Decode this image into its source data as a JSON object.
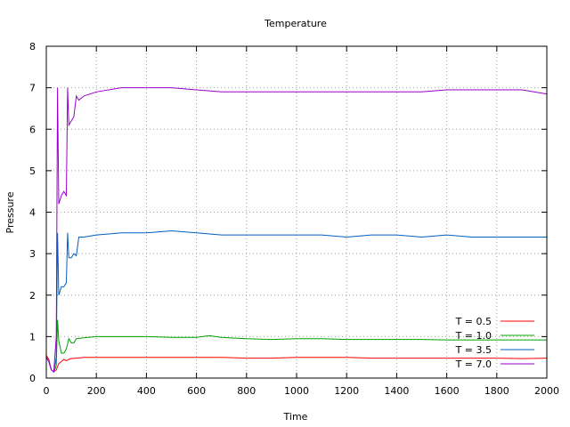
{
  "chart_data": {
    "type": "line",
    "title": "Temperature",
    "xlabel": "Time",
    "ylabel": "Pressure",
    "xlim": [
      0,
      2000
    ],
    "ylim": [
      0,
      8
    ],
    "xticks": [
      0,
      200,
      400,
      600,
      800,
      1000,
      1200,
      1400,
      1600,
      1800,
      2000
    ],
    "yticks": [
      0,
      1,
      2,
      3,
      4,
      5,
      6,
      7,
      8
    ],
    "grid": true,
    "legend_position": "bottom-right",
    "series": [
      {
        "name": "T = 0.5",
        "color": "#ff0000",
        "x": [
          0,
          10,
          20,
          30,
          40,
          50,
          60,
          70,
          80,
          90,
          100,
          120,
          150,
          200,
          300,
          400,
          500,
          600,
          700,
          800,
          900,
          1000,
          1100,
          1200,
          1300,
          1400,
          1500,
          1600,
          1700,
          1800,
          1900,
          2000
        ],
        "y": [
          0.55,
          0.45,
          0.2,
          0.15,
          0.2,
          0.35,
          0.4,
          0.45,
          0.42,
          0.45,
          0.47,
          0.48,
          0.5,
          0.5,
          0.5,
          0.5,
          0.5,
          0.5,
          0.5,
          0.48,
          0.48,
          0.5,
          0.5,
          0.5,
          0.48,
          0.48,
          0.48,
          0.48,
          0.48,
          0.48,
          0.47,
          0.48
        ]
      },
      {
        "name": "T = 1.0",
        "color": "#00a000",
        "x": [
          0,
          10,
          20,
          30,
          40,
          45,
          50,
          60,
          70,
          80,
          90,
          100,
          110,
          120,
          150,
          200,
          300,
          400,
          500,
          600,
          650,
          700,
          800,
          900,
          1000,
          1100,
          1200,
          1300,
          1400,
          1500,
          1600,
          1700,
          1800,
          1900,
          2000
        ],
        "y": [
          0.5,
          0.4,
          0.2,
          0.15,
          0.3,
          1.4,
          0.9,
          0.6,
          0.6,
          0.7,
          0.95,
          0.85,
          0.85,
          0.95,
          0.97,
          1.0,
          1.0,
          1.0,
          0.98,
          0.98,
          1.02,
          0.98,
          0.95,
          0.93,
          0.95,
          0.95,
          0.93,
          0.93,
          0.93,
          0.93,
          0.92,
          0.92,
          0.92,
          0.92,
          0.92
        ]
      },
      {
        "name": "T = 3.5",
        "color": "#0060c0",
        "x": [
          0,
          10,
          20,
          30,
          40,
          45,
          50,
          55,
          60,
          70,
          80,
          85,
          90,
          100,
          110,
          120,
          130,
          150,
          200,
          300,
          400,
          500,
          600,
          700,
          800,
          900,
          1000,
          1100,
          1200,
          1300,
          1400,
          1500,
          1600,
          1700,
          1800,
          1900,
          2000
        ],
        "y": [
          0.5,
          0.4,
          0.2,
          0.15,
          0.5,
          3.5,
          2.0,
          2.1,
          2.2,
          2.2,
          2.3,
          3.5,
          2.9,
          2.9,
          3.0,
          2.95,
          3.4,
          3.4,
          3.45,
          3.5,
          3.5,
          3.55,
          3.5,
          3.45,
          3.45,
          3.45,
          3.45,
          3.45,
          3.4,
          3.45,
          3.45,
          3.4,
          3.45,
          3.4,
          3.4,
          3.4,
          3.4
        ]
      },
      {
        "name": "T = 7.0",
        "color": "#9900cc",
        "x": [
          0,
          10,
          20,
          30,
          40,
          45,
          50,
          55,
          60,
          70,
          80,
          85,
          90,
          100,
          110,
          120,
          130,
          150,
          200,
          300,
          400,
          500,
          600,
          700,
          800,
          900,
          1000,
          1100,
          1200,
          1300,
          1400,
          1500,
          1600,
          1700,
          1800,
          1900,
          2000
        ],
        "y": [
          0.5,
          0.4,
          0.2,
          0.15,
          1.0,
          7.0,
          4.2,
          4.3,
          4.4,
          4.5,
          4.4,
          7.0,
          6.1,
          6.2,
          6.3,
          6.8,
          6.7,
          6.8,
          6.9,
          7.0,
          7.0,
          7.0,
          6.95,
          6.9,
          6.9,
          6.9,
          6.9,
          6.9,
          6.9,
          6.9,
          6.9,
          6.9,
          6.95,
          6.95,
          6.95,
          6.95,
          6.85
        ]
      }
    ]
  }
}
